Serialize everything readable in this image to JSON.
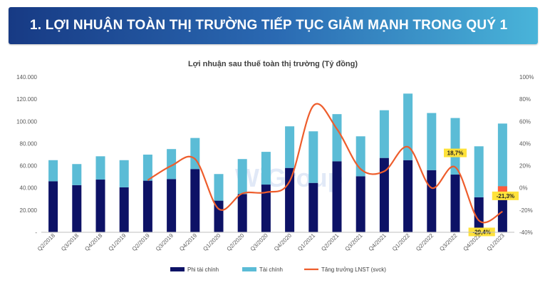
{
  "banner": {
    "title": "1. LỢI NHUẬN TOÀN THỊ TRƯỜNG TIẾP TỤC GIẢM MẠNH TRONG QUÝ 1"
  },
  "watermark": "WiGroup",
  "colors": {
    "non_financial": "#0d1266",
    "financial": "#5bbcd6",
    "growth": "#ee5d2c",
    "highlight_bar": "#ff5b3b",
    "label_bg": "#ffe23a"
  },
  "chart_data": {
    "type": "bar",
    "stacked": true,
    "title": "Lợi nhuận sau thuế toàn thị trường (Tỷ đồng)",
    "categories": [
      "Q2/2018",
      "Q3/2018",
      "Q4/2018",
      "Q1/2019",
      "Q2/2019",
      "Q3/2019",
      "Q4/2019",
      "Q1/2020",
      "Q2/2020",
      "Q3/2020",
      "Q4/2020",
      "Q1/2021",
      "Q2/2021",
      "Q3/2021",
      "Q4/2021",
      "Q1/2022",
      "Q2/2022",
      "Q3/2022",
      "Q4/2022",
      "Q1/2023"
    ],
    "series": [
      {
        "name": "Phi tài chính",
        "type": "bar",
        "values": [
          46000,
          42500,
          47500,
          40500,
          46500,
          48000,
          57000,
          28500,
          34500,
          43000,
          58000,
          44500,
          64000,
          50500,
          67000,
          65000,
          56000,
          52000,
          31500,
          29500
        ]
      },
      {
        "name": "Tài chính",
        "type": "bar",
        "values": [
          19000,
          19000,
          21000,
          24500,
          23500,
          27000,
          28000,
          24000,
          31500,
          29500,
          37500,
          46500,
          42500,
          36000,
          43000,
          60000,
          51500,
          51000,
          46000,
          68500
        ]
      },
      {
        "name": "Tăng trưởng LNST (svck)",
        "type": "line",
        "axis": "right",
        "values": [
          null,
          null,
          null,
          null,
          7,
          20,
          26,
          -19,
          -5,
          -4,
          6,
          74,
          53,
          17,
          15,
          37,
          0,
          18.7,
          -29.4,
          -21.3
        ]
      }
    ],
    "highlight": {
      "category": "Q1/2023",
      "segment": "top",
      "value": 12000
    },
    "data_labels": [
      {
        "category": "Q3/2022",
        "text": "18,7%"
      },
      {
        "category": "Q4/2022",
        "text": "-29,4%"
      },
      {
        "category": "Q1/2023",
        "text": "-21,3%"
      }
    ],
    "y_left": {
      "min": 0,
      "max": 140000,
      "ticks": [
        "-",
        "20.000",
        "40.000",
        "60.000",
        "80.000",
        "100.000",
        "120.000",
        "140.000"
      ]
    },
    "y_right": {
      "min": -40,
      "max": 100,
      "ticks": [
        "-40%",
        "-20%",
        "0%",
        "20%",
        "40%",
        "60%",
        "80%",
        "100%"
      ]
    },
    "legend_position": "bottom"
  }
}
